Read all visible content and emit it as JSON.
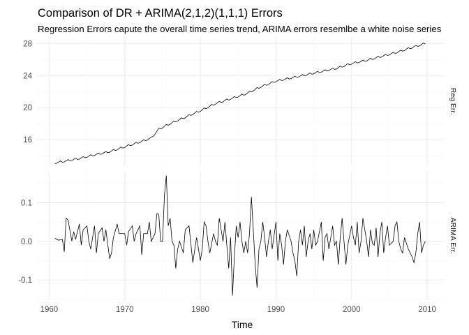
{
  "chart_data": {
    "type": "line",
    "title": "Comparison of DR + ARIMA(2,1,2)(1,1,1) Errors",
    "subtitle": "Regression Errors capute the overall time series trend, ARIMA errors resemlbe a white noise series",
    "xlabel": "Time",
    "ylabel": "",
    "x_range": [
      1960.75,
      2009.75
    ],
    "xlim": [
      1958.3,
      2012.3
    ],
    "x_ticks": [
      1960,
      1970,
      1980,
      1990,
      2000,
      2010
    ],
    "x_tick_labels": [
      "1960",
      "1970",
      "1980",
      "1990",
      "2000",
      "2010"
    ],
    "grid": true,
    "panels": [
      {
        "strip_label": "Reg Err.",
        "ylim": [
          12.7,
          28.9
        ],
        "y_ticks": [
          16,
          20,
          24,
          28
        ],
        "y_tick_labels": [
          "16",
          "20",
          "24",
          "28"
        ],
        "anchors": [
          [
            1960.75,
            13.1
          ],
          [
            1962,
            13.3
          ],
          [
            1964,
            13.65
          ],
          [
            1966,
            14.1
          ],
          [
            1968,
            14.5
          ],
          [
            1970,
            15.1
          ],
          [
            1972,
            15.7
          ],
          [
            1973.5,
            16.2
          ],
          [
            1974.5,
            17.3
          ],
          [
            1976,
            18.0
          ],
          [
            1978,
            18.8
          ],
          [
            1980,
            19.6
          ],
          [
            1982,
            20.5
          ],
          [
            1984,
            21.1
          ],
          [
            1986,
            21.7
          ],
          [
            1988,
            22.6
          ],
          [
            1990,
            23.3
          ],
          [
            1992,
            23.7
          ],
          [
            1994,
            24.1
          ],
          [
            1996,
            24.5
          ],
          [
            1998,
            24.9
          ],
          [
            2000,
            25.5
          ],
          [
            2002,
            25.9
          ],
          [
            2004,
            26.4
          ],
          [
            2006,
            26.9
          ],
          [
            2008,
            27.5
          ],
          [
            2009.75,
            28.0
          ]
        ],
        "seasonal_amplitude": 0.13
      },
      {
        "strip_label": "ARIMA Err.",
        "ylim": [
          -0.152,
          0.182
        ],
        "y_ticks": [
          -0.1,
          0.0,
          0.1
        ],
        "y_tick_labels": [
          "-0.1",
          "0.0",
          "0.1"
        ],
        "points": [
          [
            1960.75,
            0.008
          ],
          [
            1961.25,
            0.003
          ],
          [
            1961.75,
            0.005
          ],
          [
            1962.0,
            -0.027
          ],
          [
            1962.25,
            0.06
          ],
          [
            1962.5,
            0.055
          ],
          [
            1963.0,
            0.001
          ],
          [
            1963.25,
            0.025
          ],
          [
            1963.5,
            0.005
          ],
          [
            1964.0,
            0.045
          ],
          [
            1964.25,
            -0.01
          ],
          [
            1964.5,
            0.03
          ],
          [
            1965.0,
            0.04
          ],
          [
            1965.25,
            0.0
          ],
          [
            1965.5,
            -0.02
          ],
          [
            1966.0,
            0.04
          ],
          [
            1966.25,
            -0.03
          ],
          [
            1966.5,
            0.02
          ],
          [
            1967.0,
            0.035
          ],
          [
            1967.25,
            0.0
          ],
          [
            1967.5,
            0.03
          ],
          [
            1968.0,
            -0.045
          ],
          [
            1968.25,
            -0.03
          ],
          [
            1968.5,
            0.01
          ],
          [
            1969.0,
            0.045
          ],
          [
            1969.25,
            0.02
          ],
          [
            1969.5,
            0.02
          ],
          [
            1970.0,
            0.02
          ],
          [
            1970.25,
            -0.01
          ],
          [
            1970.5,
            0.025
          ],
          [
            1971.0,
            0.04
          ],
          [
            1971.25,
            0.0
          ],
          [
            1971.5,
            0.02
          ],
          [
            1972.0,
            0.04
          ],
          [
            1972.25,
            -0.035
          ],
          [
            1972.5,
            0.02
          ],
          [
            1973.0,
            0.02
          ],
          [
            1973.25,
            0.05
          ],
          [
            1973.5,
            0.0
          ],
          [
            1973.75,
            0.01
          ],
          [
            1974.0,
            0.02
          ],
          [
            1974.25,
            0.072
          ],
          [
            1974.5,
            0.07
          ],
          [
            1974.75,
            0.0
          ],
          [
            1975.0,
            0.0
          ],
          [
            1975.25,
            0.12
          ],
          [
            1975.5,
            0.17
          ],
          [
            1975.75,
            0.04
          ],
          [
            1976.0,
            0.06
          ],
          [
            1976.25,
            0.0
          ],
          [
            1976.5,
            -0.01
          ],
          [
            1976.75,
            -0.07
          ],
          [
            1977.0,
            -0.02
          ],
          [
            1977.25,
            0.0
          ],
          [
            1977.75,
            -0.03
          ],
          [
            1978.0,
            0.03
          ],
          [
            1978.5,
            0.04
          ],
          [
            1979.0,
            -0.055
          ],
          [
            1979.5,
            0.01
          ],
          [
            1980.0,
            -0.05
          ],
          [
            1980.25,
            -0.02
          ],
          [
            1980.5,
            0.05
          ],
          [
            1980.75,
            0.04
          ],
          [
            1981.0,
            0.0
          ],
          [
            1981.25,
            -0.03
          ],
          [
            1981.75,
            0.02
          ],
          [
            1982.0,
            0.0
          ],
          [
            1982.25,
            -0.01
          ],
          [
            1982.5,
            0.06
          ],
          [
            1982.75,
            0.03
          ],
          [
            1983.0,
            0.0
          ],
          [
            1983.25,
            0.05
          ],
          [
            1983.5,
            -0.01
          ],
          [
            1983.75,
            -0.07
          ],
          [
            1984.0,
            0.01
          ],
          [
            1984.25,
            -0.14
          ],
          [
            1984.5,
            -0.04
          ],
          [
            1984.75,
            0.04
          ],
          [
            1985.0,
            0.01
          ],
          [
            1985.25,
            0.05
          ],
          [
            1985.5,
            0.0
          ],
          [
            1985.75,
            -0.03
          ],
          [
            1986.0,
            0.0
          ],
          [
            1986.25,
            -0.03
          ],
          [
            1986.5,
            0.02
          ],
          [
            1986.75,
            0.115
          ],
          [
            1987.0,
            0.03
          ],
          [
            1987.25,
            -0.06
          ],
          [
            1987.5,
            -0.12
          ],
          [
            1987.75,
            -0.02
          ],
          [
            1988.0,
            0.0
          ],
          [
            1988.25,
            0.05
          ],
          [
            1988.5,
            0.01
          ],
          [
            1988.75,
            -0.04
          ],
          [
            1989.0,
            0.0
          ],
          [
            1989.25,
            0.03
          ],
          [
            1989.5,
            -0.02
          ],
          [
            1990.0,
            0.05
          ],
          [
            1990.25,
            -0.05
          ],
          [
            1990.5,
            0.02
          ],
          [
            1990.75,
            -0.01
          ],
          [
            1991.0,
            -0.06
          ],
          [
            1991.25,
            0.0
          ],
          [
            1991.5,
            0.03
          ],
          [
            1992.0,
            0.0
          ],
          [
            1992.25,
            -0.03
          ],
          [
            1992.5,
            -0.05
          ],
          [
            1992.75,
            -0.09
          ],
          [
            1993.0,
            0.0
          ],
          [
            1993.25,
            0.03
          ],
          [
            1993.5,
            -0.01
          ],
          [
            1993.75,
            0.04
          ],
          [
            1994.0,
            -0.04
          ],
          [
            1994.25,
            0.0
          ],
          [
            1994.5,
            0.02
          ],
          [
            1994.75,
            -0.02
          ],
          [
            1995.0,
            0.03
          ],
          [
            1995.25,
            -0.01
          ],
          [
            1995.5,
            0.0
          ],
          [
            1996.0,
            0.05
          ],
          [
            1996.25,
            -0.05
          ],
          [
            1996.5,
            0.01
          ],
          [
            1996.75,
            0.02
          ],
          [
            1997.0,
            -0.02
          ],
          [
            1997.5,
            0.04
          ],
          [
            1997.75,
            -0.01
          ],
          [
            1998.0,
            0.0
          ],
          [
            1998.25,
            -0.06
          ],
          [
            1998.5,
            0.01
          ],
          [
            1998.75,
            0.06
          ],
          [
            1999.0,
            0.0
          ],
          [
            1999.25,
            -0.06
          ],
          [
            1999.5,
            -0.01
          ],
          [
            2000.0,
            0.04
          ],
          [
            2000.25,
            0.01
          ],
          [
            2000.5,
            -0.01
          ],
          [
            2000.75,
            0.05
          ],
          [
            2001.0,
            -0.03
          ],
          [
            2001.25,
            0.0
          ],
          [
            2001.5,
            0.06
          ],
          [
            2001.75,
            0.03
          ],
          [
            2002.0,
            0.0
          ],
          [
            2002.25,
            -0.04
          ],
          [
            2002.5,
            0.03
          ],
          [
            2002.75,
            -0.005
          ],
          [
            2003.0,
            -0.01
          ],
          [
            2003.25,
            0.035
          ],
          [
            2003.5,
            -0.04
          ],
          [
            2003.75,
            0.02
          ],
          [
            2004.0,
            0.05
          ],
          [
            2004.25,
            -0.03
          ],
          [
            2004.5,
            0.01
          ],
          [
            2004.75,
            0.04
          ],
          [
            2005.0,
            -0.01
          ],
          [
            2005.5,
            0.0
          ],
          [
            2005.75,
            0.04
          ],
          [
            2006.0,
            0.05
          ],
          [
            2006.25,
            0.0
          ],
          [
            2006.5,
            -0.02
          ],
          [
            2006.75,
            -0.03
          ],
          [
            2007.0,
            0.01
          ],
          [
            2007.5,
            -0.02
          ],
          [
            2008.0,
            -0.04
          ],
          [
            2008.25,
            -0.055
          ],
          [
            2008.5,
            -0.03
          ],
          [
            2008.75,
            0.02
          ],
          [
            2009.0,
            0.05
          ],
          [
            2009.25,
            -0.03
          ],
          [
            2009.5,
            -0.01
          ],
          [
            2009.75,
            0.0
          ]
        ]
      }
    ]
  }
}
